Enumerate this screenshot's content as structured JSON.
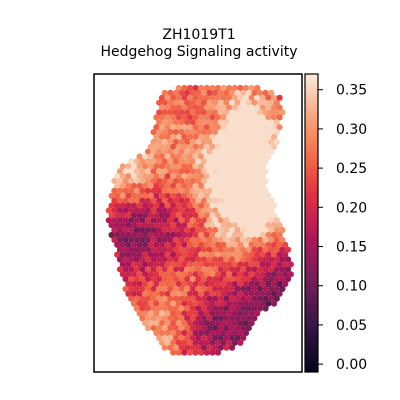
{
  "chart_data": {
    "type": "scatter",
    "subtype": "spatial-hexbin",
    "title_line1": "ZH1019T1",
    "title_line2": "Hedgehog Signaling activity",
    "xlabel": "",
    "ylabel": "",
    "grid": false,
    "colormap": "rocket",
    "colorbar": {
      "vmin": -0.01,
      "vmax": 0.37,
      "ticks": [
        0.0,
        0.05,
        0.1,
        0.15,
        0.2,
        0.25,
        0.3,
        0.35
      ],
      "tick_labels": [
        "0.00",
        "0.05",
        "0.10",
        "0.15",
        "0.20",
        "0.25",
        "0.30",
        "0.35"
      ]
    },
    "value_mean": 0.21,
    "value_min": -0.005,
    "value_max": 0.36
  }
}
